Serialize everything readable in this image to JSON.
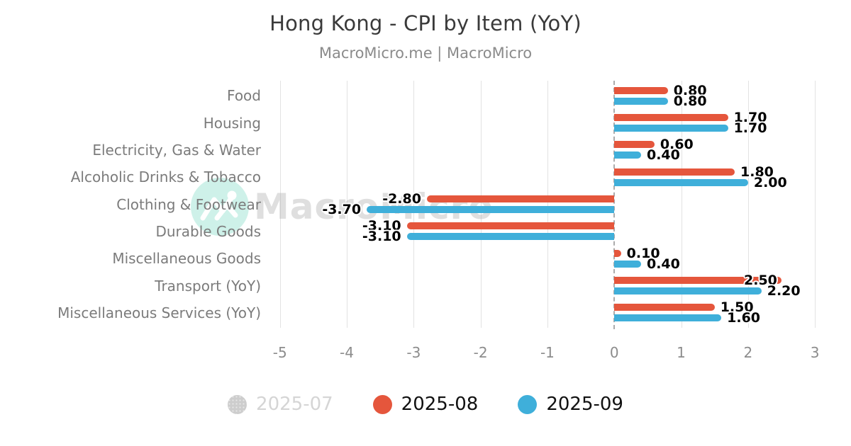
{
  "header": {
    "title": "Hong Kong - CPI by Item (YoY)",
    "subtitle": "MacroMicro.me | MacroMicro"
  },
  "watermark": {
    "text": "MacroMicro",
    "logo": "macromicro-mountain-logo",
    "logo_color": "#bfe9df",
    "mark_color": "#ffffff"
  },
  "chart_data": {
    "type": "bar",
    "orientation": "horizontal",
    "title": "Hong Kong - CPI by Item (YoY)",
    "subtitle": "MacroMicro.me | MacroMicro",
    "categories": [
      "Food",
      "Housing",
      "Electricity, Gas & Water",
      "Alcoholic Drinks & Tobacco",
      "Clothing & Footwear",
      "Durable Goods",
      "Miscellaneous Goods",
      "Transport (YoY)",
      "Miscellaneous Services (YoY)"
    ],
    "series": [
      {
        "name": "2025-07",
        "color": "#cdcdcd",
        "visible": false,
        "values": []
      },
      {
        "name": "2025-08",
        "color": "#e5563c",
        "visible": true,
        "values": [
          0.8,
          1.7,
          0.6,
          1.8,
          -2.8,
          -3.1,
          0.1,
          2.5,
          1.5
        ]
      },
      {
        "name": "2025-09",
        "color": "#3fafda",
        "visible": true,
        "values": [
          0.8,
          1.7,
          0.4,
          2.0,
          -3.7,
          -3.1,
          0.4,
          2.2,
          1.6
        ]
      }
    ],
    "xlim": [
      -5.05,
      3.03
    ],
    "xticks": [
      -5,
      -4,
      -3,
      -2,
      -1,
      0,
      1,
      2,
      3
    ],
    "grid": true,
    "zero_line": "dashed",
    "value_labels": "two-decimals",
    "legend_position": "bottom"
  }
}
